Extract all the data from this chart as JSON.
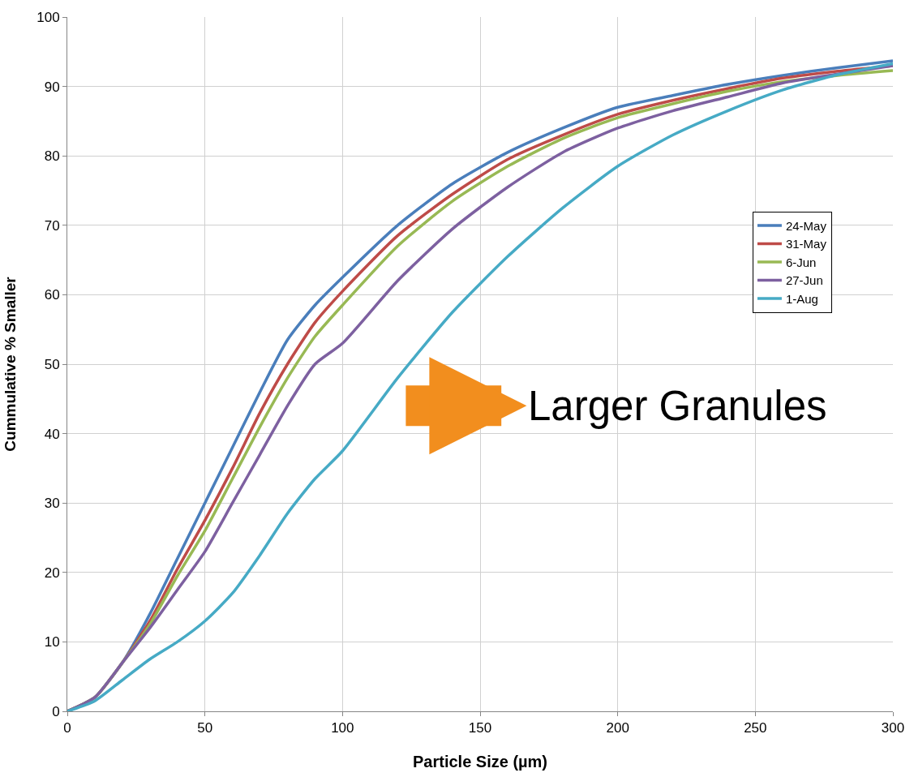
{
  "chart_data": {
    "type": "line",
    "xlabel": "Particle Size (µm)",
    "ylabel": "Cummulative % Smaller",
    "x": [
      0,
      10,
      20,
      30,
      40,
      50,
      60,
      70,
      80,
      90,
      100,
      120,
      140,
      160,
      180,
      200,
      220,
      240,
      260,
      280,
      300
    ],
    "series": [
      {
        "name": "24-May",
        "color": "#4a7ebb",
        "values": [
          0,
          2,
          7,
          14,
          22,
          30,
          38,
          46,
          53.5,
          58.5,
          62.5,
          70,
          76,
          80.5,
          84,
          87,
          88.7,
          90.3,
          91.6,
          92.7,
          93.7
        ]
      },
      {
        "name": "31-May",
        "color": "#be4b48",
        "values": [
          0,
          2,
          7,
          13,
          20.5,
          27.5,
          35,
          43,
          50,
          56,
          60.5,
          68.5,
          74.5,
          79.5,
          83,
          86,
          88,
          89.7,
          91.2,
          92.2,
          93
        ]
      },
      {
        "name": "6-Jun",
        "color": "#98b954",
        "values": [
          0,
          2,
          7,
          12.5,
          19.5,
          26,
          33.5,
          41,
          48,
          54,
          58.5,
          67,
          73.5,
          78.5,
          82.5,
          85.5,
          87.5,
          89.3,
          90.7,
          91.6,
          92.3
        ]
      },
      {
        "name": "27-Jun",
        "color": "#7d60a0",
        "values": [
          0,
          2,
          7,
          12,
          17.5,
          23,
          30,
          37,
          44,
          50,
          53,
          62,
          69.5,
          75.5,
          80.5,
          84,
          86.5,
          88.5,
          90.5,
          91.8,
          93
        ]
      },
      {
        "name": "1-Aug",
        "color": "#46aac5",
        "values": [
          0,
          1.5,
          4.5,
          7.5,
          10,
          13,
          17,
          22.5,
          28.5,
          33.5,
          37.5,
          48,
          57.5,
          65.5,
          72.5,
          78.5,
          83,
          86.5,
          89.5,
          91.7,
          93.3
        ]
      }
    ],
    "xlim": [
      0,
      300
    ],
    "xticks": [
      0,
      50,
      100,
      150,
      200,
      250,
      300
    ],
    "ylim": [
      0,
      100
    ],
    "yticks": [
      0,
      10,
      20,
      30,
      40,
      50,
      60,
      70,
      80,
      90,
      100
    ],
    "annotations": [
      "Larger Granules"
    ],
    "grid": true,
    "legend": "right",
    "marker": "none",
    "line_style": "solid"
  }
}
